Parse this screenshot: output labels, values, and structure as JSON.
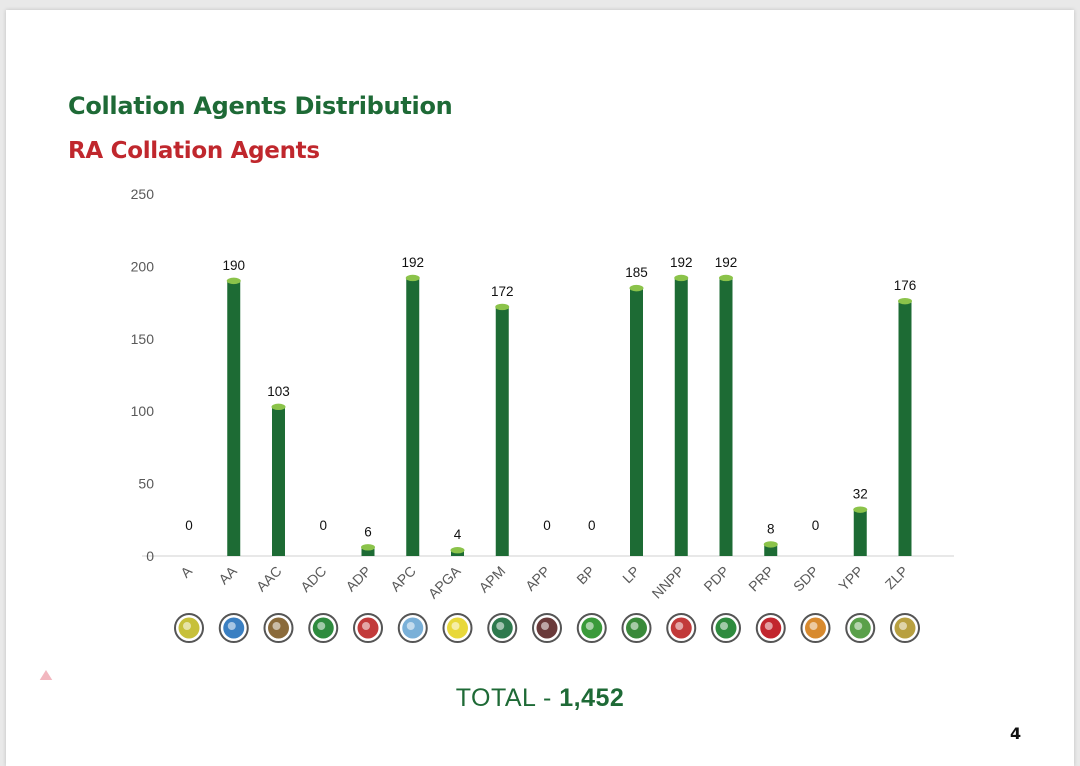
{
  "chart_data": {
    "type": "bar",
    "title": "Collation Agents Distribution",
    "subtitle": "RA Collation Agents",
    "categories": [
      "A",
      "AA",
      "AAC",
      "ADC",
      "ADP",
      "APC",
      "APGA",
      "APM",
      "APP",
      "BP",
      "LP",
      "NNPP",
      "PDP",
      "PRP",
      "SDP",
      "YPP",
      "ZLP"
    ],
    "values": [
      0,
      190,
      103,
      0,
      6,
      192,
      4,
      172,
      0,
      0,
      185,
      192,
      192,
      8,
      0,
      32,
      176
    ],
    "ylim": [
      0,
      250
    ],
    "yticks": [
      0,
      50,
      100,
      150,
      200,
      250
    ],
    "xlabel": "",
    "ylabel": "",
    "grid": false,
    "bar_color": "#1d6b34",
    "bar_cap_color": "#8bc34a"
  },
  "party_logos": [
    "A-logo-icon",
    "AA-logo-icon",
    "AAC-logo-icon",
    "ADC-logo-icon",
    "ADP-logo-icon",
    "APC-logo-icon",
    "APGA-logo-icon",
    "APM-logo-icon",
    "APP-logo-icon",
    "BP-logo-icon",
    "LP-logo-icon",
    "NNPP-logo-icon",
    "PDP-logo-icon",
    "PRP-logo-icon",
    "SDP-logo-icon",
    "YPP-logo-icon",
    "ZLP-logo-icon"
  ],
  "footer": {
    "total_label": "TOTAL - ",
    "total_value": "1,452",
    "page_number": "4"
  },
  "colors": {
    "title": "#1e6a36",
    "subtitle": "#c0272d"
  }
}
